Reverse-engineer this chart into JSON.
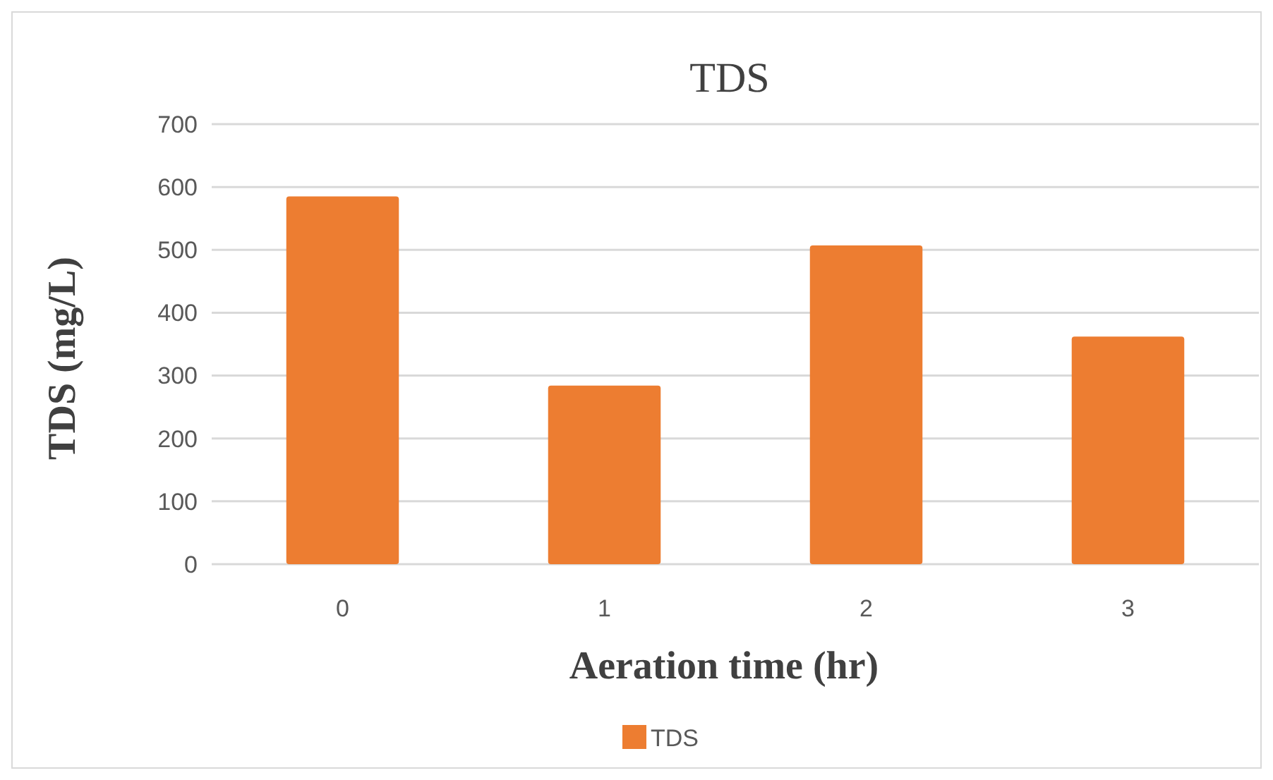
{
  "chart_data": {
    "type": "bar",
    "title": "TDS",
    "xlabel": "Aeration time (hr)",
    "ylabel": "TDS (mg/L)",
    "categories": [
      "0",
      "1",
      "2",
      "3"
    ],
    "series": [
      {
        "name": "TDS",
        "color": "#ed7d31",
        "values": [
          585,
          284,
          507,
          362
        ]
      }
    ],
    "ylim": [
      0,
      700
    ],
    "yticks": [
      0,
      100,
      200,
      300,
      400,
      500,
      600,
      700
    ],
    "grid": "y",
    "legend": "bottom"
  }
}
